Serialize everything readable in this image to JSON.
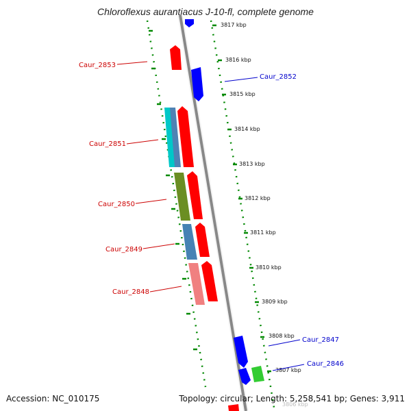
{
  "title": "Chloroflexus aurantiacus J-10-fl, complete genome",
  "accession": "Accession: NC_010175",
  "summary": "Topology: circular; Length: 5,258,541 bp; Genes: 3,911",
  "colors": {
    "forward": "#ff0000",
    "reverse": "#0000ff",
    "label_left": "#cc0000",
    "label_right": "#0000cc",
    "guide": "#008800",
    "backbone": "#888888"
  },
  "ticks": [
    {
      "label": "3817 kbp"
    },
    {
      "label": "3816 kbp"
    },
    {
      "label": "3815 kbp"
    },
    {
      "label": "3814 kbp"
    },
    {
      "label": "3813 kbp"
    },
    {
      "label": "3812 kbp"
    },
    {
      "label": "3811 kbp"
    },
    {
      "label": "3810 kbp"
    },
    {
      "label": "3809 kbp"
    },
    {
      "label": "3808 kbp"
    },
    {
      "label": "3807 kbp"
    },
    {
      "label": "3806 kbp"
    }
  ],
  "gene_labels": [
    {
      "text": "Caur_2853",
      "side": "left"
    },
    {
      "text": "Caur_2852",
      "side": "right"
    },
    {
      "text": "Caur_2851",
      "side": "left"
    },
    {
      "text": "Caur_2850",
      "side": "left"
    },
    {
      "text": "Caur_2849",
      "side": "left"
    },
    {
      "text": "Caur_2848",
      "side": "left"
    },
    {
      "text": "Caur_2847",
      "side": "right"
    },
    {
      "text": "Caur_2846",
      "side": "right"
    }
  ]
}
